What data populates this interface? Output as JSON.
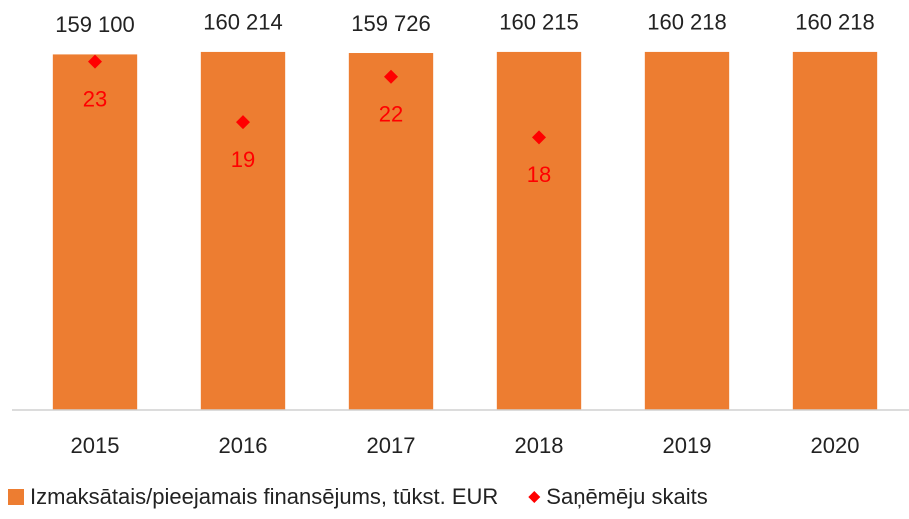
{
  "chart_data": {
    "type": "bar",
    "categories": [
      "2015",
      "2016",
      "2017",
      "2018",
      "2019",
      "2020"
    ],
    "series": [
      {
        "name": "Izmaksātais/pieejamais finansējums, tūkst. EUR",
        "color": "#ed7d31",
        "values": [
          159100,
          160214,
          159726,
          160215,
          160218,
          160218
        ],
        "value_labels": [
          "159 100",
          "160 214",
          "159 726",
          "160 215",
          "160 218",
          "160 218"
        ]
      },
      {
        "name": "Saņēmēju skaits",
        "color": "#ff0000",
        "type": "scatter",
        "axis": "y2",
        "values": [
          23,
          19,
          22,
          18,
          null,
          null
        ]
      }
    ],
    "ylim": [
      0,
      183000
    ],
    "y2lim": [
      0,
      27
    ],
    "legend": "bottom"
  }
}
